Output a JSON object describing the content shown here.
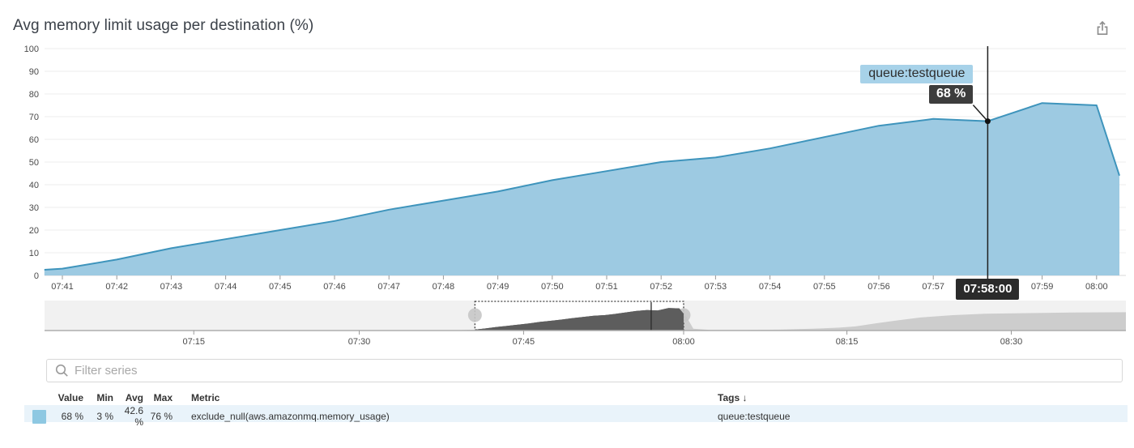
{
  "header": {
    "title": "Avg memory limit usage per destination (%)"
  },
  "tooltip": {
    "series": "queue:testqueue",
    "value": "68 %",
    "time": "07:58:00"
  },
  "filter": {
    "placeholder": "Filter series"
  },
  "table": {
    "headers": {
      "value": "Value",
      "min": "Min",
      "avg": "Avg",
      "max": "Max",
      "metric": "Metric",
      "tags": "Tags",
      "sort_arrow": "↓"
    },
    "rows": [
      {
        "swatch_color": "#8ec8e2",
        "value": "68 %",
        "min": "3 %",
        "avg": "42.6 %",
        "max": "76 %",
        "metric": "exclude_null(aws.amazonmq.memory_usage)",
        "tags": "queue:testqueue"
      }
    ]
  },
  "colors": {
    "series_line": "#3e94bc",
    "series_fill": "#9dcae2",
    "tooltip_label_bg": "#a7d2e9",
    "tooltip_value_bg": "#3d3d3d",
    "time_badge_bg": "#2b2b2b",
    "row_highlight": "#e9f3fa",
    "swatch": "#8ec8e2",
    "minimap_selected_fill": "#5d5d5d",
    "minimap_unselected_fill": "#cdcdcd",
    "grid_line": "#ededed"
  },
  "chart_data": {
    "type": "area",
    "title": "Avg memory limit usage per destination (%)",
    "xlabel": "",
    "ylabel": "",
    "ylim": [
      0,
      100
    ],
    "yticks": [
      0,
      10,
      20,
      30,
      40,
      50,
      60,
      70,
      80,
      90,
      100
    ],
    "x_labels": [
      "07:41",
      "07:42",
      "07:43",
      "07:44",
      "07:45",
      "07:46",
      "07:47",
      "07:48",
      "07:49",
      "07:50",
      "07:51",
      "07:52",
      "07:53",
      "07:54",
      "07:55",
      "07:56",
      "07:57",
      "07:58",
      "07:59",
      "08:00"
    ],
    "grid": "horizontal",
    "legend_position": "table-below",
    "series": [
      {
        "name": "queue:testqueue",
        "metric": "exclude_null(aws.amazonmq.memory_usage)",
        "unit": "%",
        "points": [
          [
            -0.33,
            2.5
          ],
          [
            0,
            3
          ],
          [
            1,
            7
          ],
          [
            2,
            12
          ],
          [
            3,
            16
          ],
          [
            4,
            20
          ],
          [
            5,
            24
          ],
          [
            6,
            29
          ],
          [
            7,
            33
          ],
          [
            8,
            37
          ],
          [
            9,
            42
          ],
          [
            10,
            46
          ],
          [
            11,
            50
          ],
          [
            12,
            52
          ],
          [
            13,
            56
          ],
          [
            14,
            61
          ],
          [
            15,
            66
          ],
          [
            16,
            69
          ],
          [
            17,
            68
          ],
          [
            18,
            76
          ],
          [
            19,
            75
          ],
          [
            19.42,
            44
          ]
        ]
      }
    ],
    "hover": {
      "time": "07:58:00",
      "x_minutes": 17,
      "value": 68
    },
    "stats": {
      "value": "68 %",
      "min": "3 %",
      "avg": "42.6 %",
      "max": "76 %"
    },
    "minimap": {
      "x_labels": [
        {
          "f": 0.138,
          "label": "07:15"
        },
        {
          "f": 0.291,
          "label": "07:30"
        },
        {
          "f": 0.443,
          "label": "07:45"
        },
        {
          "f": 0.591,
          "label": "08:00"
        },
        {
          "f": 0.742,
          "label": "08:15"
        },
        {
          "f": 0.894,
          "label": "08:30"
        }
      ],
      "selection": {
        "start_f": 0.398,
        "end_f": 0.591,
        "start_label": "07:41",
        "end_label": "08:00"
      },
      "hover_f": 0.561,
      "points": [
        [
          0,
          0
        ],
        [
          0.3,
          0.5
        ],
        [
          0.385,
          1.5
        ],
        [
          0.398,
          3
        ],
        [
          0.408,
          7
        ],
        [
          0.418,
          12
        ],
        [
          0.428,
          16
        ],
        [
          0.438,
          20
        ],
        [
          0.448,
          24
        ],
        [
          0.458,
          29
        ],
        [
          0.468,
          33
        ],
        [
          0.478,
          37
        ],
        [
          0.488,
          42
        ],
        [
          0.498,
          46
        ],
        [
          0.508,
          50
        ],
        [
          0.518,
          52
        ],
        [
          0.527,
          56
        ],
        [
          0.537,
          61
        ],
        [
          0.547,
          66
        ],
        [
          0.557,
          69
        ],
        [
          0.567,
          68
        ],
        [
          0.577,
          76
        ],
        [
          0.587,
          75
        ],
        [
          0.594,
          44
        ],
        [
          0.6,
          6
        ],
        [
          0.615,
          2
        ],
        [
          0.65,
          2
        ],
        [
          0.68,
          3
        ],
        [
          0.71,
          6
        ],
        [
          0.735,
          10
        ],
        [
          0.75,
          14
        ],
        [
          0.77,
          25
        ],
        [
          0.79,
          35
        ],
        [
          0.81,
          44
        ],
        [
          0.84,
          52
        ],
        [
          0.87,
          57
        ],
        [
          0.91,
          59
        ],
        [
          0.95,
          61
        ],
        [
          1,
          62
        ]
      ]
    }
  }
}
